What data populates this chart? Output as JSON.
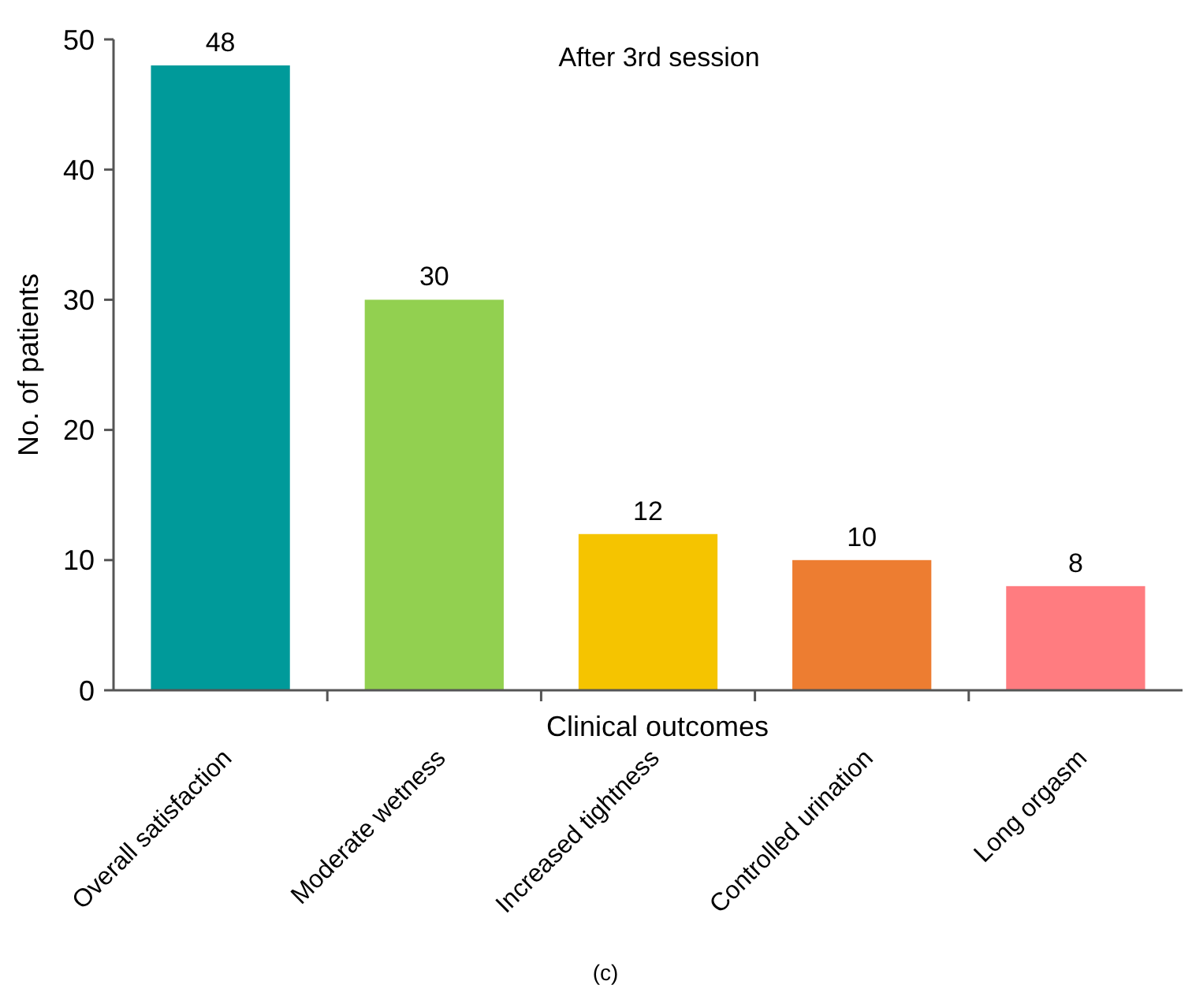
{
  "chart_data": {
    "type": "bar",
    "title": "After 3rd session",
    "xlabel": "Clinical outcomes",
    "ylabel": "No. of patients",
    "categories": [
      "Overall satisfaction",
      "Moderate wetness",
      "Increased tightness",
      "Controlled urination",
      "Long orgasm"
    ],
    "values": [
      48,
      30,
      12,
      10,
      8
    ],
    "colors": [
      "#009a9a",
      "#92d050",
      "#f5c400",
      "#ed7d31",
      "#ff7c80"
    ],
    "data_labels": true,
    "ylim": [
      0,
      50
    ],
    "yticks": [
      0,
      10,
      20,
      30,
      40,
      50
    ],
    "grid": false,
    "annotations": [
      "(c)"
    ]
  }
}
